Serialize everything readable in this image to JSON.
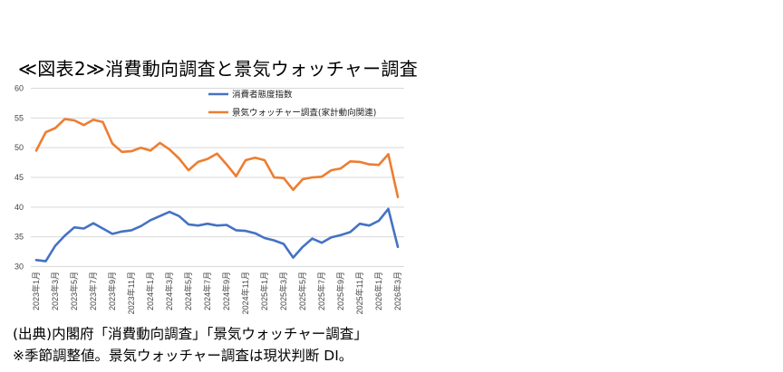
{
  "title": "≪図表2≫消費動向調査と景気ウォッチャー調査",
  "notes": [
    "(出典)内閣府「消費動向調査」「景気ウォッチャー調査」",
    "※季節調整値。景気ウォッチャー調査は現状判断 DI。"
  ],
  "chart_data": {
    "type": "line",
    "title": "≪図表2≫消費動向調査と景気ウォッチャー調査",
    "xlabel": "",
    "ylabel": "",
    "ylim": [
      30,
      60
    ],
    "yticks": [
      30,
      35,
      40,
      45,
      50,
      55,
      60
    ],
    "grid": true,
    "legend_position": "top-right",
    "x": [
      "2023年1月",
      "2023年2月",
      "2023年3月",
      "2023年4月",
      "2023年5月",
      "2023年6月",
      "2023年7月",
      "2023年8月",
      "2023年9月",
      "2023年10月",
      "2023年11月",
      "2023年12月",
      "2024年1月",
      "2024年2月",
      "2024年3月",
      "2024年4月",
      "2024年5月",
      "2024年6月",
      "2024年7月",
      "2024年8月",
      "2024年9月",
      "2024年10月",
      "2024年11月",
      "2024年12月",
      "2025年1月",
      "2025年2月",
      "2025年3月",
      "2025年4月",
      "2025年5月",
      "2025年6月",
      "2025年7月",
      "2025年8月",
      "2025年9月",
      "2025年10月",
      "2025年11月",
      "2025年12月",
      "2026年1月",
      "2026年2月",
      "2026年3月"
    ],
    "xtick_labels": [
      "2023年1月",
      "2023年3月",
      "2023年5月",
      "2023年7月",
      "2023年9月",
      "2023年11月",
      "2024年1月",
      "2024年3月",
      "2024年5月",
      "2024年7月",
      "2024年9月",
      "2024年11月",
      "2025年1月",
      "2025年3月",
      "2025年5月",
      "2025年7月",
      "2025年9月",
      "2025年11月",
      "2026年1月",
      "2026年3月"
    ],
    "series": [
      {
        "name": "消費者態度指数",
        "color": "#4472C4",
        "values": [
          31.1,
          30.9,
          33.5,
          35.2,
          36.6,
          36.4,
          37.3,
          36.4,
          35.5,
          35.9,
          36.1,
          36.8,
          37.8,
          38.5,
          39.2,
          38.5,
          37.1,
          36.9,
          37.2,
          36.9,
          37.0,
          36.1,
          36.0,
          35.6,
          34.8,
          34.4,
          33.8,
          31.5,
          33.3,
          34.7,
          34.0,
          34.9,
          35.3,
          35.8,
          37.2,
          36.9,
          37.7,
          39.7,
          33.3
        ]
      },
      {
        "name": "景気ウォッチャー調査(家計動向関連)",
        "color": "#ED7D31",
        "values": [
          49.5,
          52.6,
          53.3,
          54.8,
          54.6,
          53.8,
          54.7,
          54.3,
          50.7,
          49.3,
          49.4,
          50.0,
          49.5,
          50.8,
          49.7,
          48.2,
          46.2,
          47.6,
          48.1,
          49.0,
          47.2,
          45.2,
          47.9,
          48.3,
          47.9,
          45.0,
          44.9,
          42.9,
          44.7,
          45.0,
          45.1,
          46.2,
          46.5,
          47.7,
          47.6,
          47.2,
          47.1,
          48.9,
          41.7
        ]
      }
    ]
  }
}
